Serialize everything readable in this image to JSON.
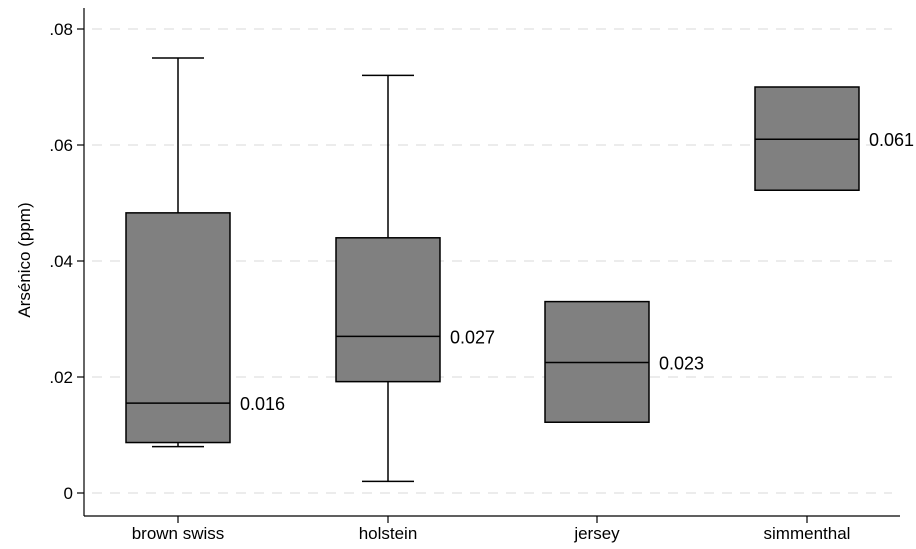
{
  "chart_data": {
    "type": "box",
    "title": "",
    "xlabel": "",
    "ylabel": "Arsénico (ppm)",
    "ylim": [
      0,
      0.08
    ],
    "yticks": [
      {
        "value": 0,
        "label": "0"
      },
      {
        "value": 0.02,
        "label": ".02"
      },
      {
        "value": 0.04,
        "label": ".04"
      },
      {
        "value": 0.06,
        "label": ".06"
      },
      {
        "value": 0.08,
        "label": ".08"
      }
    ],
    "grid": "horizontal dashed",
    "categories": [
      "brown swiss",
      "holstein",
      "jersey",
      "simmenthal"
    ],
    "boxes": [
      {
        "category": "brown swiss",
        "whisker_low": 0.008,
        "q1": 0.0087,
        "median": 0.0155,
        "q3": 0.0483,
        "whisker_high": 0.075,
        "median_label": "0.016"
      },
      {
        "category": "holstein",
        "whisker_low": 0.002,
        "q1": 0.0192,
        "median": 0.027,
        "q3": 0.044,
        "whisker_high": 0.072,
        "median_label": "0.027"
      },
      {
        "category": "jersey",
        "whisker_low": null,
        "q1": 0.0122,
        "median": 0.0225,
        "q3": 0.033,
        "whisker_high": null,
        "median_label": "0.023"
      },
      {
        "category": "simmenthal",
        "whisker_low": null,
        "q1": 0.0522,
        "median": 0.061,
        "q3": 0.07,
        "whisker_high": null,
        "median_label": "0.061"
      }
    ],
    "colors": {
      "box_fill": "#808080",
      "line": "#000000",
      "grid": "#e6e6e6",
      "background": "#ffffff"
    }
  }
}
